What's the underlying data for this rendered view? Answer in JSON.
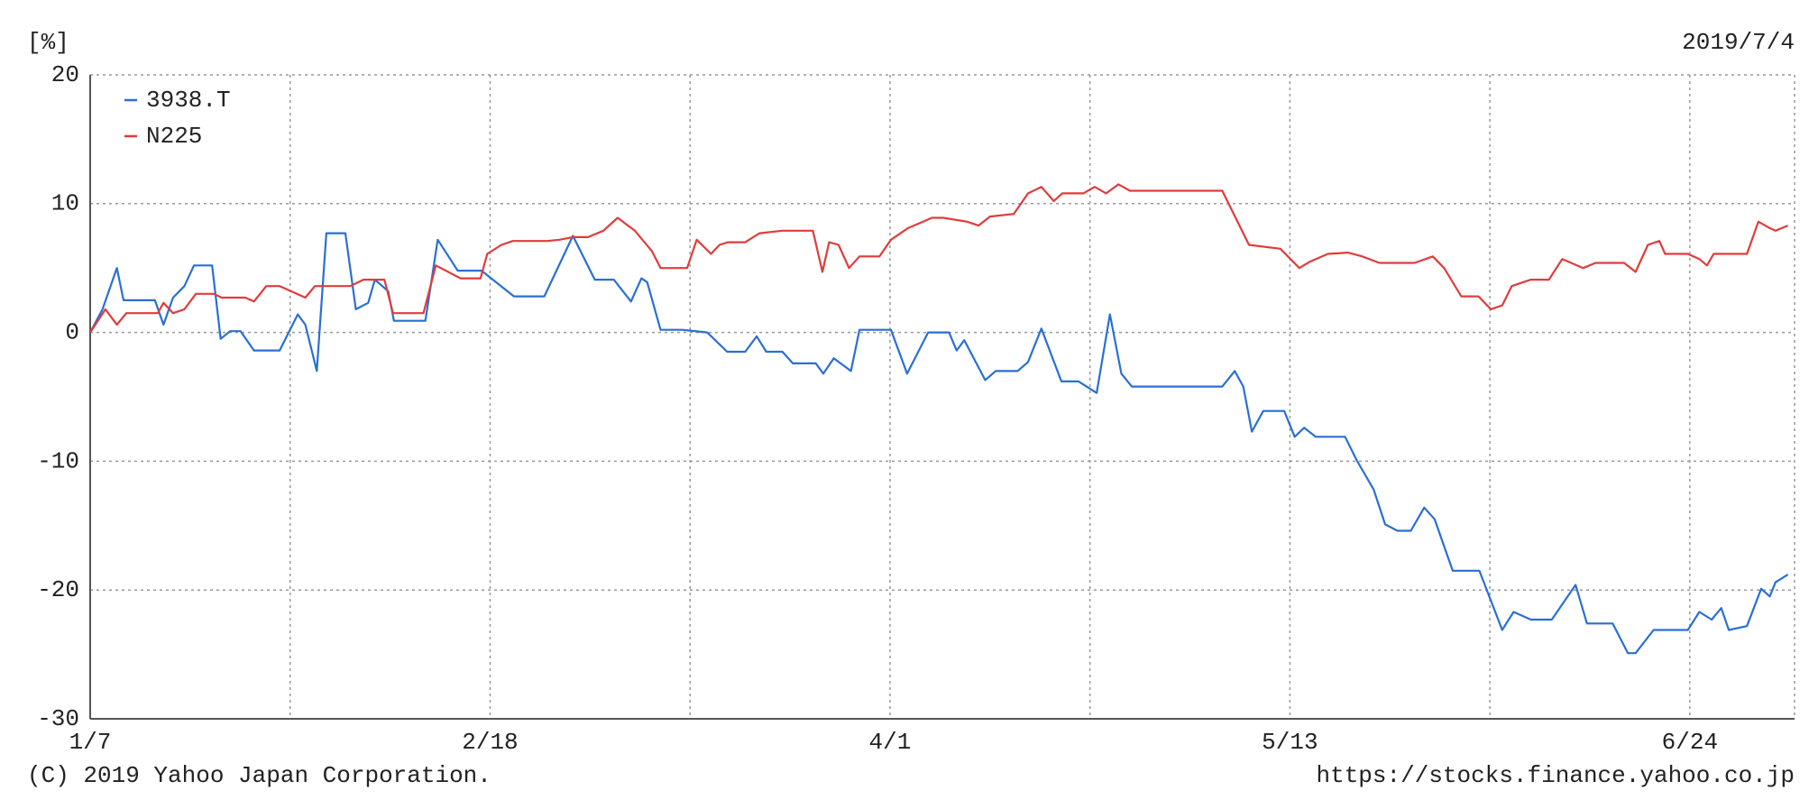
{
  "chart_data": {
    "type": "line",
    "unit_label": "[%]",
    "date": "2019/7/4",
    "footer_left": "(C) 2019 Yahoo Japan Corporation.",
    "footer_right": "https://stocks.finance.yahoo.co.jp",
    "xlim": [
      0,
      179
    ],
    "xticks": [
      {
        "value": 0,
        "label": "1/7"
      },
      {
        "value": 42,
        "label": "2/18"
      },
      {
        "value": 84,
        "label": "4/1"
      },
      {
        "value": 126,
        "label": "5/13"
      },
      {
        "value": 168,
        "label": "6/24"
      }
    ],
    "xminor": [
      21,
      63,
      105,
      147
    ],
    "ylim": [
      -30,
      20
    ],
    "yticks": [
      20,
      10,
      0,
      -10,
      -20,
      -30
    ],
    "grid": true,
    "legend": "top-left",
    "series": [
      {
        "name": "3938.T",
        "color": "#2a6fd4",
        "x": [
          0,
          1.3,
          2.8,
          3.5,
          6.8,
          7.7,
          8.7,
          9.9,
          10.9,
          12.8,
          13.7,
          14.7,
          15.8,
          17.2,
          19.9,
          21.8,
          22.6,
          23.8,
          24.8,
          26.8,
          27.9,
          29.2,
          29.9,
          31.3,
          31.9,
          35.2,
          36.5,
          38.6,
          41.1,
          44.5,
          47.7,
          50.7,
          53.0,
          55.0,
          56.8,
          57.9,
          58.5,
          59.9,
          62.2,
          64.8,
          66.9,
          68.8,
          70.0,
          71.0,
          72.7,
          73.8,
          76.2,
          77.0,
          78.1,
          79.9,
          80.8,
          84.1,
          85.8,
          88.0,
          90.2,
          91.0,
          91.8,
          94.0,
          95.1,
          97.4,
          98.5,
          99.9,
          102.0,
          103.8,
          105.7,
          107.1,
          108.3,
          109.4,
          118.9,
          120.2,
          121.1,
          122.0,
          123.2,
          125.4,
          126.5,
          127.5,
          128.7,
          131.8,
          133.0,
          134.8,
          136.0,
          137.3,
          138.7,
          140.1,
          141.2,
          143.1,
          145.9,
          148.3,
          149.5,
          151.3,
          153.5,
          156.0,
          157.2,
          159.9,
          161.5,
          162.3,
          164.2,
          167.8,
          169.0,
          170.3,
          171.3,
          172.1,
          174.0,
          175.5,
          176.4,
          177.0,
          178.3
        ],
        "values": [
          0,
          1.8,
          5.0,
          2.5,
          2.5,
          0.6,
          2.7,
          3.6,
          5.2,
          5.2,
          -0.5,
          0.1,
          0.1,
          -1.4,
          -1.4,
          1.4,
          0.6,
          -3.0,
          7.7,
          7.7,
          1.8,
          2.3,
          4.1,
          3.2,
          0.9,
          0.9,
          7.2,
          4.8,
          4.8,
          2.8,
          2.8,
          7.5,
          4.1,
          4.1,
          2.4,
          4.2,
          3.9,
          0.2,
          0.2,
          0,
          -1.5,
          -1.5,
          -0.3,
          -1.5,
          -1.5,
          -2.4,
          -2.4,
          -3.2,
          -2.0,
          -3.0,
          0.2,
          0.2,
          -3.2,
          0,
          0,
          -1.4,
          -0.6,
          -3.7,
          -3.0,
          -3.0,
          -2.3,
          0.3,
          -3.8,
          -3.8,
          -4.7,
          1.4,
          -3.2,
          -4.2,
          -4.2,
          -3.0,
          -4.2,
          -7.7,
          -6.1,
          -6.1,
          -8.1,
          -7.4,
          -8.1,
          -8.1,
          -9.9,
          -12.2,
          -14.9,
          -15.4,
          -15.4,
          -13.6,
          -14.5,
          -18.5,
          -18.5,
          -23.1,
          -21.7,
          -22.3,
          -22.3,
          -19.6,
          -22.6,
          -22.6,
          -24.9,
          -24.9,
          -23.1,
          -23.1,
          -21.7,
          -22.3,
          -21.4,
          -23.1,
          -22.8,
          -19.9,
          -20.5,
          -19.4,
          -18.8
        ]
      },
      {
        "name": "N225",
        "color": "#e03c3c",
        "x": [
          0,
          1.6,
          2.8,
          3.8,
          7.1,
          7.7,
          8.7,
          9.9,
          11.1,
          13.0,
          13.8,
          16.3,
          17.2,
          18.5,
          19.9,
          21.1,
          22.6,
          23.6,
          27.3,
          28.7,
          30.9,
          31.8,
          35.0,
          36.3,
          38.9,
          41.0,
          41.7,
          43.2,
          44.4,
          48.0,
          49.3,
          50.7,
          52.3,
          53.9,
          55.4,
          57.2,
          59.0,
          59.9,
          62.7,
          63.7,
          65.2,
          66.1,
          67.0,
          68.8,
          70.3,
          72.7,
          75.9,
          76.9,
          77.6,
          78.6,
          79.7,
          80.8,
          82.9,
          84.1,
          85.9,
          88.4,
          89.6,
          92.1,
          93.3,
          94.5,
          97.0,
          98.5,
          99.9,
          101.2,
          102.1,
          104.3,
          105.5,
          106.7,
          108.0,
          109.2,
          118.9,
          121.7,
          125.0,
          127.0,
          128.1,
          130.0,
          132.1,
          133.6,
          135.4,
          139.1,
          141.0,
          142.2,
          144.0,
          145.8,
          147.1,
          148.3,
          149.3,
          151.3,
          153.2,
          154.6,
          156.8,
          158.1,
          161.1,
          162.3,
          163.6,
          164.8,
          165.4,
          167.8,
          169.0,
          169.8,
          170.5,
          174.0,
          175.2,
          176.4,
          177.0,
          178.3
        ],
        "values": [
          0,
          1.8,
          0.6,
          1.5,
          1.5,
          2.3,
          1.5,
          1.8,
          3.0,
          3.0,
          2.7,
          2.7,
          2.4,
          3.6,
          3.6,
          3.2,
          2.7,
          3.6,
          3.6,
          4.1,
          4.1,
          1.5,
          1.5,
          5.2,
          4.2,
          4.2,
          6.1,
          6.8,
          7.1,
          7.1,
          7.2,
          7.4,
          7.4,
          7.9,
          8.9,
          7.9,
          6.3,
          5.0,
          5.0,
          7.2,
          6.1,
          6.8,
          7.0,
          7.0,
          7.7,
          7.9,
          7.9,
          4.7,
          7.0,
          6.8,
          5.0,
          5.9,
          5.9,
          7.2,
          8.1,
          8.9,
          8.9,
          8.6,
          8.3,
          9.0,
          9.2,
          10.8,
          11.3,
          10.2,
          10.8,
          10.8,
          11.3,
          10.8,
          11.5,
          11.0,
          11.0,
          6.8,
          6.5,
          5.0,
          5.5,
          6.1,
          6.2,
          5.9,
          5.4,
          5.4,
          5.9,
          5.0,
          2.8,
          2.8,
          1.8,
          2.1,
          3.6,
          4.1,
          4.1,
          5.7,
          5.0,
          5.4,
          5.4,
          4.7,
          6.8,
          7.1,
          6.1,
          6.1,
          5.7,
          5.2,
          6.1,
          6.1,
          8.6,
          8.1,
          7.9,
          8.3
        ]
      }
    ]
  }
}
